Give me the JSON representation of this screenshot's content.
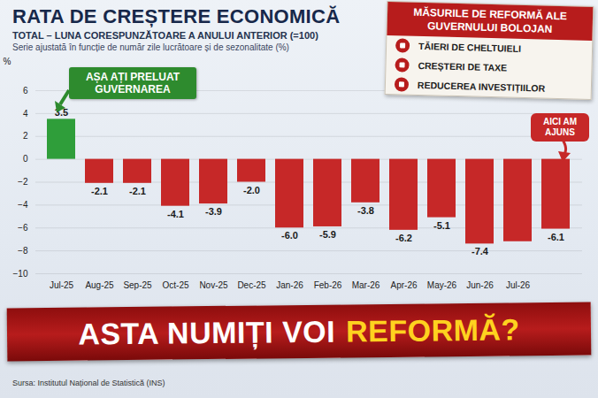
{
  "chart_data": {
    "type": "bar",
    "title": "RATA DE CREȘTERE ECONOMICĂ",
    "subtitle": [
      "TOTAL – LUNA CORESPUNZĂTOARE A ANULUI ANTERIOR (=100)",
      "Serie ajustată în funcție de număr zile lucrătoare și de sezonalitate (%)"
    ],
    "y_label": "%",
    "categories": [
      "Jul-25",
      "Aug-25",
      "Sep-25",
      "Oct-25",
      "Nov-25",
      "Dec-25",
      "Jan-26",
      "Feb-26",
      "Mar-26",
      "Apr-26",
      "May-26",
      "Jun-26",
      "Jul-26",
      null
    ],
    "values": [
      3.5,
      -2.1,
      -2.1,
      -4.1,
      -3.9,
      -2.0,
      -6.0,
      -5.9,
      -3.8,
      -6.2,
      -5.1,
      -7.4,
      -7.2,
      -6.1
    ],
    "value_labels": [
      "3.5",
      "-2.1",
      "-2.1",
      "-4.1",
      "-3.9",
      "-2.0",
      "-6.0",
      "-5.9",
      "-3.8",
      "-6.2",
      "-5.1",
      "-7.4",
      null,
      "-6.1"
    ],
    "colors": [
      "#2f9e3a",
      "#c62828",
      "#c62828",
      "#c62828",
      "#c62828",
      "#c62828",
      "#c62828",
      "#c62828",
      "#c62828",
      "#c62828",
      "#c62828",
      "#c62828",
      "#c62828",
      "#c62828"
    ],
    "ylim": [
      -10,
      6
    ],
    "yticks": [
      -10,
      -8,
      -6,
      -4,
      -2,
      0,
      2,
      4,
      6
    ],
    "grid": true,
    "data_labels": true,
    "annotations": [
      {
        "text": "AȘA AȚI PRELUAT GUVERNAREA"
      },
      {
        "text": "AICI AM AJUNS"
      }
    ],
    "reform_box": {
      "title": "MĂSURILE DE REFORMĂ ALE GUVERNULUI BOLOJAN",
      "items": [
        "TĂIERI DE CHELTUIELI",
        "CREȘTERI DE TAXE",
        "REDUCEREA INVESTIȚIILOR"
      ]
    },
    "headline": [
      "ASTA NUMIȚI VOI",
      "REFORMĂ?"
    ],
    "source": "Sursa: Institutul Național de Statistică (INS)"
  }
}
